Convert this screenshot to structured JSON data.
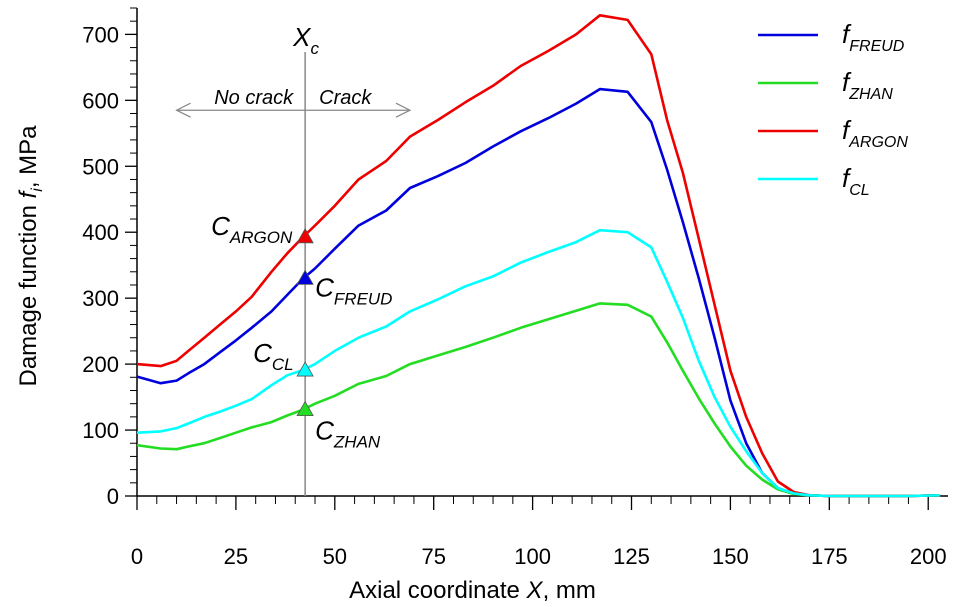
{
  "chart_data": {
    "type": "line",
    "title": "",
    "xlabel": {
      "prefix": "Axial coordinate ",
      "var": "X",
      "suffix": ", mm"
    },
    "ylabel": {
      "prefix": "Damage function ",
      "var": "f",
      "sub": "i",
      "suffix": ", MPa"
    },
    "xlim": [
      0,
      205
    ],
    "ylim": [
      0,
      740
    ],
    "xticks": [
      0,
      25,
      50,
      75,
      100,
      125,
      150,
      175,
      200
    ],
    "yticks": [
      0,
      100,
      200,
      300,
      400,
      500,
      600,
      700
    ],
    "xticklabels": [
      "0",
      "25",
      "50",
      "75",
      "100",
      "125",
      "150",
      "175",
      "200"
    ],
    "yticklabels": [
      "0",
      "100",
      "200",
      "300",
      "400",
      "500",
      "600",
      "700"
    ],
    "legend_position": "top-right",
    "series": [
      {
        "name": "f_FREUD",
        "base": "f",
        "sub": "FREUD",
        "color": "#0000dd",
        "x": [
          0,
          6,
          10,
          13,
          17,
          21,
          25,
          29,
          34,
          38,
          42,
          45,
          50,
          56,
          63,
          69,
          76,
          83,
          90,
          97,
          104,
          111,
          117,
          124,
          130,
          134,
          138,
          142,
          146,
          150,
          154,
          158,
          162,
          166,
          170,
          175,
          185,
          195,
          203
        ],
        "values": [
          181,
          171,
          175,
          186,
          200,
          218,
          236,
          255,
          280,
          305,
          330,
          345,
          375,
          410,
          433,
          467,
          485,
          505,
          530,
          553,
          573,
          595,
          617,
          613,
          567,
          495,
          415,
          330,
          240,
          145,
          80,
          35,
          12,
          4,
          1,
          0,
          0,
          0,
          1
        ]
      },
      {
        "name": "f_ZHAN",
        "base": "f",
        "sub": "ZHAN",
        "color": "#22dd22",
        "x": [
          0,
          6,
          10,
          13,
          17,
          21,
          25,
          29,
          34,
          38,
          42,
          45,
          50,
          56,
          63,
          69,
          76,
          83,
          90,
          97,
          104,
          111,
          117,
          124,
          130,
          134,
          138,
          142,
          146,
          150,
          154,
          158,
          162,
          166,
          170,
          175,
          185,
          195,
          203
        ],
        "values": [
          77,
          72,
          71,
          75,
          80,
          88,
          96,
          104,
          112,
          122,
          131,
          140,
          152,
          170,
          182,
          200,
          213,
          226,
          240,
          255,
          268,
          281,
          292,
          290,
          272,
          233,
          190,
          148,
          110,
          75,
          46,
          25,
          10,
          3,
          1,
          0,
          0,
          0,
          1
        ]
      },
      {
        "name": "f_ARGON",
        "base": "f",
        "sub": "ARGON",
        "color": "#ee0000",
        "x": [
          0,
          6,
          10,
          13,
          17,
          21,
          25,
          29,
          34,
          38,
          42,
          45,
          50,
          56,
          63,
          69,
          76,
          83,
          90,
          97,
          104,
          111,
          117,
          124,
          130,
          134,
          138,
          142,
          146,
          150,
          154,
          158,
          162,
          166,
          170,
          175,
          185,
          195,
          203
        ],
        "values": [
          200,
          197,
          205,
          220,
          240,
          260,
          280,
          302,
          340,
          368,
          393,
          410,
          440,
          480,
          508,
          545,
          570,
          597,
          622,
          652,
          675,
          700,
          729,
          722,
          670,
          570,
          490,
          390,
          290,
          190,
          120,
          65,
          22,
          6,
          1,
          0,
          0,
          0,
          1
        ]
      },
      {
        "name": "f_CL",
        "base": "f",
        "sub": "CL",
        "color": "#00ffff",
        "x": [
          0,
          6,
          10,
          13,
          17,
          21,
          25,
          29,
          34,
          38,
          42,
          45,
          50,
          56,
          63,
          69,
          76,
          83,
          90,
          97,
          104,
          111,
          117,
          124,
          130,
          134,
          138,
          142,
          146,
          150,
          154,
          158,
          162,
          166,
          170,
          175,
          185,
          195,
          203
        ],
        "values": [
          96,
          98,
          103,
          110,
          120,
          128,
          137,
          147,
          168,
          183,
          191,
          200,
          220,
          240,
          257,
          280,
          298,
          318,
          333,
          354,
          370,
          385,
          403,
          400,
          377,
          325,
          270,
          205,
          150,
          105,
          68,
          35,
          12,
          4,
          1,
          0,
          0,
          0,
          1
        ]
      }
    ],
    "marker_x": 42.5,
    "markers": [
      {
        "name": "C_ARGON",
        "base": "C",
        "sub": "ARGON",
        "y": 393,
        "color": "#ee0000"
      },
      {
        "name": "C_FREUD",
        "base": "C",
        "sub": "FREUD",
        "y": 330,
        "color": "#0000dd"
      },
      {
        "name": "C_CL",
        "base": "C",
        "sub": "CL",
        "y": 191,
        "color": "#00ffff"
      },
      {
        "name": "C_ZHAN",
        "base": "C",
        "sub": "ZHAN",
        "y": 131,
        "color": "#22dd22"
      }
    ],
    "critical_line": {
      "x": 42.5,
      "label_base": "X",
      "label_sub": "c",
      "left_label": "No crack",
      "right_label": "Crack",
      "arrow_y": 585,
      "arrow_x_left": 10,
      "arrow_x_right": 69
    }
  }
}
